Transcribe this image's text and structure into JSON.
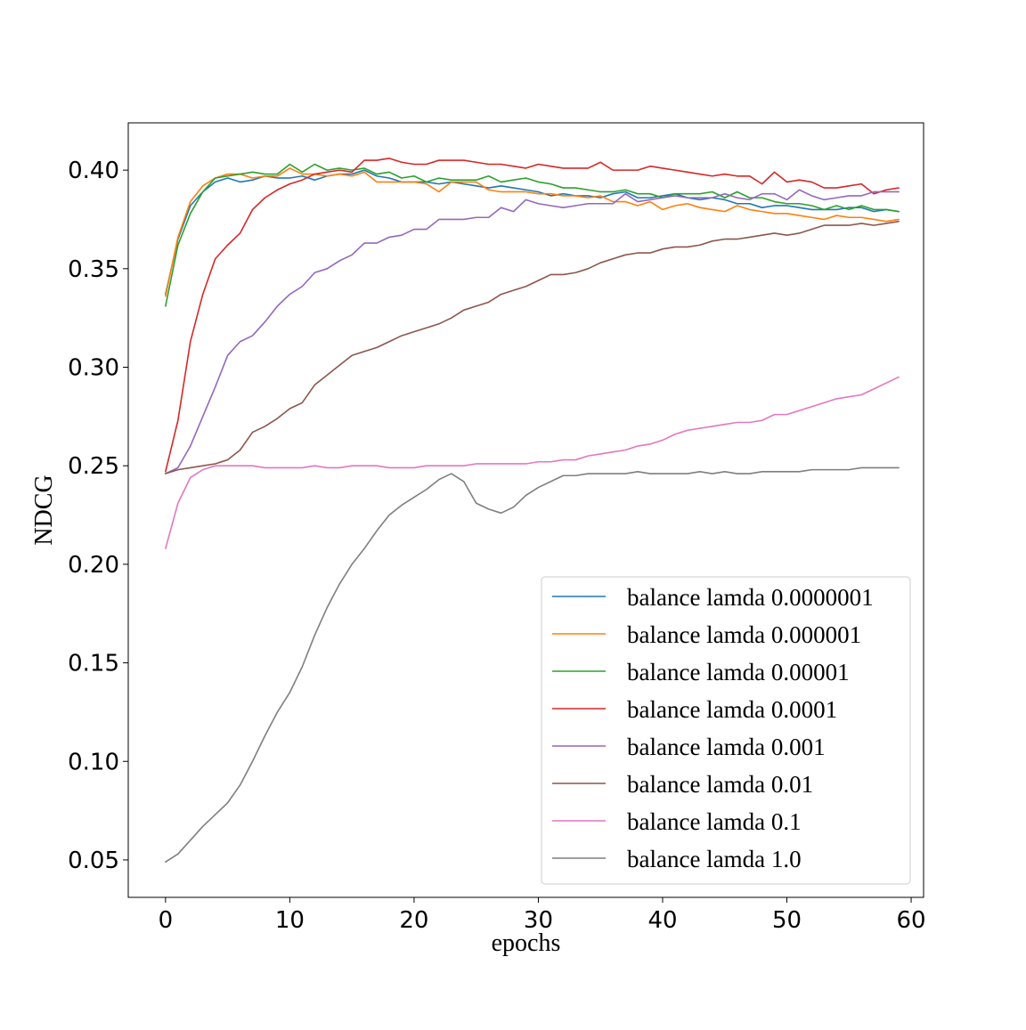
{
  "chart_data": {
    "type": "line",
    "xlabel": "epochs",
    "ylabel": "NDCG",
    "xlim": [
      -3,
      61
    ],
    "ylim": [
      0.031,
      0.424
    ],
    "xticks": [
      0,
      10,
      20,
      30,
      40,
      50,
      60
    ],
    "yticks": [
      0.05,
      0.1,
      0.15,
      0.2,
      0.25,
      0.3,
      0.35,
      0.4
    ],
    "xtick_labels": [
      "0",
      "10",
      "20",
      "30",
      "40",
      "50",
      "60"
    ],
    "ytick_labels": [
      "0.05",
      "0.10",
      "0.15",
      "0.20",
      "0.25",
      "0.30",
      "0.35",
      "0.40"
    ],
    "grid": false,
    "legend_position": "lower-right",
    "x": [
      0,
      1,
      2,
      3,
      4,
      5,
      6,
      7,
      8,
      9,
      10,
      11,
      12,
      13,
      14,
      15,
      16,
      17,
      18,
      19,
      20,
      21,
      22,
      23,
      24,
      25,
      26,
      27,
      28,
      29,
      30,
      31,
      32,
      33,
      34,
      35,
      36,
      37,
      38,
      39,
      40,
      41,
      42,
      43,
      44,
      45,
      46,
      47,
      48,
      49,
      50,
      51,
      52,
      53,
      54,
      55,
      56,
      57,
      58,
      59
    ],
    "series": [
      {
        "name": "balance lamda 0.0000001",
        "color": "#1f77b4",
        "values": [
          0.337,
          0.365,
          0.382,
          0.389,
          0.394,
          0.396,
          0.394,
          0.395,
          0.397,
          0.396,
          0.396,
          0.397,
          0.395,
          0.397,
          0.398,
          0.398,
          0.4,
          0.397,
          0.396,
          0.394,
          0.394,
          0.394,
          0.393,
          0.394,
          0.393,
          0.392,
          0.391,
          0.392,
          0.391,
          0.39,
          0.389,
          0.387,
          0.388,
          0.387,
          0.387,
          0.386,
          0.388,
          0.389,
          0.386,
          0.386,
          0.387,
          0.388,
          0.386,
          0.385,
          0.386,
          0.385,
          0.383,
          0.383,
          0.381,
          0.382,
          0.382,
          0.381,
          0.38,
          0.38,
          0.38,
          0.381,
          0.381,
          0.379,
          0.38,
          0.379
        ]
      },
      {
        "name": "balance lamda 0.000001",
        "color": "#ff7f0e",
        "values": [
          0.336,
          0.366,
          0.384,
          0.392,
          0.396,
          0.398,
          0.398,
          0.396,
          0.397,
          0.397,
          0.401,
          0.398,
          0.398,
          0.397,
          0.398,
          0.397,
          0.399,
          0.394,
          0.394,
          0.394,
          0.394,
          0.393,
          0.389,
          0.394,
          0.394,
          0.394,
          0.39,
          0.389,
          0.389,
          0.389,
          0.388,
          0.388,
          0.387,
          0.387,
          0.386,
          0.387,
          0.384,
          0.384,
          0.382,
          0.384,
          0.38,
          0.382,
          0.383,
          0.381,
          0.38,
          0.379,
          0.382,
          0.38,
          0.379,
          0.378,
          0.378,
          0.377,
          0.376,
          0.375,
          0.377,
          0.376,
          0.376,
          0.375,
          0.374,
          0.375
        ]
      },
      {
        "name": "balance lamda 0.00001",
        "color": "#2ca02c",
        "values": [
          0.331,
          0.362,
          0.378,
          0.389,
          0.396,
          0.397,
          0.398,
          0.399,
          0.398,
          0.398,
          0.403,
          0.399,
          0.403,
          0.4,
          0.401,
          0.4,
          0.401,
          0.398,
          0.399,
          0.396,
          0.397,
          0.394,
          0.396,
          0.395,
          0.395,
          0.395,
          0.397,
          0.394,
          0.395,
          0.396,
          0.394,
          0.393,
          0.391,
          0.391,
          0.39,
          0.389,
          0.389,
          0.39,
          0.388,
          0.388,
          0.386,
          0.388,
          0.388,
          0.388,
          0.389,
          0.386,
          0.389,
          0.386,
          0.386,
          0.384,
          0.383,
          0.383,
          0.382,
          0.38,
          0.382,
          0.38,
          0.382,
          0.38,
          0.38,
          0.379
        ]
      },
      {
        "name": "balance lamda 0.0001",
        "color": "#d62728",
        "values": [
          0.247,
          0.273,
          0.313,
          0.337,
          0.355,
          0.362,
          0.368,
          0.38,
          0.386,
          0.39,
          0.393,
          0.395,
          0.398,
          0.399,
          0.4,
          0.399,
          0.405,
          0.405,
          0.406,
          0.404,
          0.403,
          0.403,
          0.405,
          0.405,
          0.405,
          0.404,
          0.403,
          0.403,
          0.402,
          0.401,
          0.403,
          0.402,
          0.401,
          0.401,
          0.401,
          0.404,
          0.4,
          0.4,
          0.4,
          0.402,
          0.401,
          0.4,
          0.399,
          0.398,
          0.397,
          0.398,
          0.397,
          0.397,
          0.393,
          0.399,
          0.394,
          0.395,
          0.394,
          0.391,
          0.391,
          0.392,
          0.393,
          0.388,
          0.39,
          0.391
        ]
      },
      {
        "name": "balance lamda 0.001",
        "color": "#9467bd",
        "values": [
          0.246,
          0.249,
          0.26,
          0.275,
          0.29,
          0.306,
          0.313,
          0.316,
          0.323,
          0.331,
          0.337,
          0.341,
          0.348,
          0.35,
          0.354,
          0.357,
          0.363,
          0.363,
          0.366,
          0.367,
          0.37,
          0.37,
          0.375,
          0.375,
          0.375,
          0.376,
          0.376,
          0.381,
          0.379,
          0.385,
          0.383,
          0.382,
          0.381,
          0.382,
          0.383,
          0.383,
          0.383,
          0.388,
          0.384,
          0.385,
          0.386,
          0.387,
          0.386,
          0.386,
          0.386,
          0.388,
          0.386,
          0.385,
          0.388,
          0.388,
          0.385,
          0.39,
          0.387,
          0.385,
          0.386,
          0.387,
          0.387,
          0.389,
          0.389,
          0.389
        ]
      },
      {
        "name": "balance lamda 0.01",
        "color": "#8c564b",
        "values": [
          0.246,
          0.248,
          0.249,
          0.25,
          0.251,
          0.253,
          0.258,
          0.267,
          0.27,
          0.274,
          0.279,
          0.282,
          0.291,
          0.296,
          0.301,
          0.306,
          0.308,
          0.31,
          0.313,
          0.316,
          0.318,
          0.32,
          0.322,
          0.325,
          0.329,
          0.331,
          0.333,
          0.337,
          0.339,
          0.341,
          0.344,
          0.347,
          0.347,
          0.348,
          0.35,
          0.353,
          0.355,
          0.357,
          0.358,
          0.358,
          0.36,
          0.361,
          0.361,
          0.362,
          0.364,
          0.365,
          0.365,
          0.366,
          0.367,
          0.368,
          0.367,
          0.368,
          0.37,
          0.372,
          0.372,
          0.372,
          0.373,
          0.372,
          0.373,
          0.374
        ]
      },
      {
        "name": "balance lamda 0.1",
        "color": "#e377c2",
        "values": [
          0.208,
          0.231,
          0.244,
          0.248,
          0.25,
          0.25,
          0.25,
          0.25,
          0.249,
          0.249,
          0.249,
          0.249,
          0.25,
          0.249,
          0.249,
          0.25,
          0.25,
          0.25,
          0.249,
          0.249,
          0.249,
          0.25,
          0.25,
          0.25,
          0.25,
          0.251,
          0.251,
          0.251,
          0.251,
          0.251,
          0.252,
          0.252,
          0.253,
          0.253,
          0.255,
          0.256,
          0.257,
          0.258,
          0.26,
          0.261,
          0.263,
          0.266,
          0.268,
          0.269,
          0.27,
          0.271,
          0.272,
          0.272,
          0.273,
          0.276,
          0.276,
          0.278,
          0.28,
          0.282,
          0.284,
          0.285,
          0.286,
          0.289,
          0.292,
          0.295
        ]
      },
      {
        "name": "balance lamda 1.0",
        "color": "#7f7f7f",
        "values": [
          0.049,
          0.053,
          0.06,
          0.067,
          0.073,
          0.079,
          0.088,
          0.1,
          0.113,
          0.125,
          0.135,
          0.148,
          0.164,
          0.178,
          0.19,
          0.2,
          0.208,
          0.217,
          0.225,
          0.23,
          0.234,
          0.238,
          0.243,
          0.246,
          0.242,
          0.231,
          0.228,
          0.226,
          0.229,
          0.235,
          0.239,
          0.242,
          0.245,
          0.245,
          0.246,
          0.246,
          0.246,
          0.246,
          0.247,
          0.246,
          0.246,
          0.246,
          0.246,
          0.247,
          0.246,
          0.247,
          0.246,
          0.246,
          0.247,
          0.247,
          0.247,
          0.247,
          0.248,
          0.248,
          0.248,
          0.248,
          0.249,
          0.249,
          0.249,
          0.249
        ]
      }
    ]
  }
}
